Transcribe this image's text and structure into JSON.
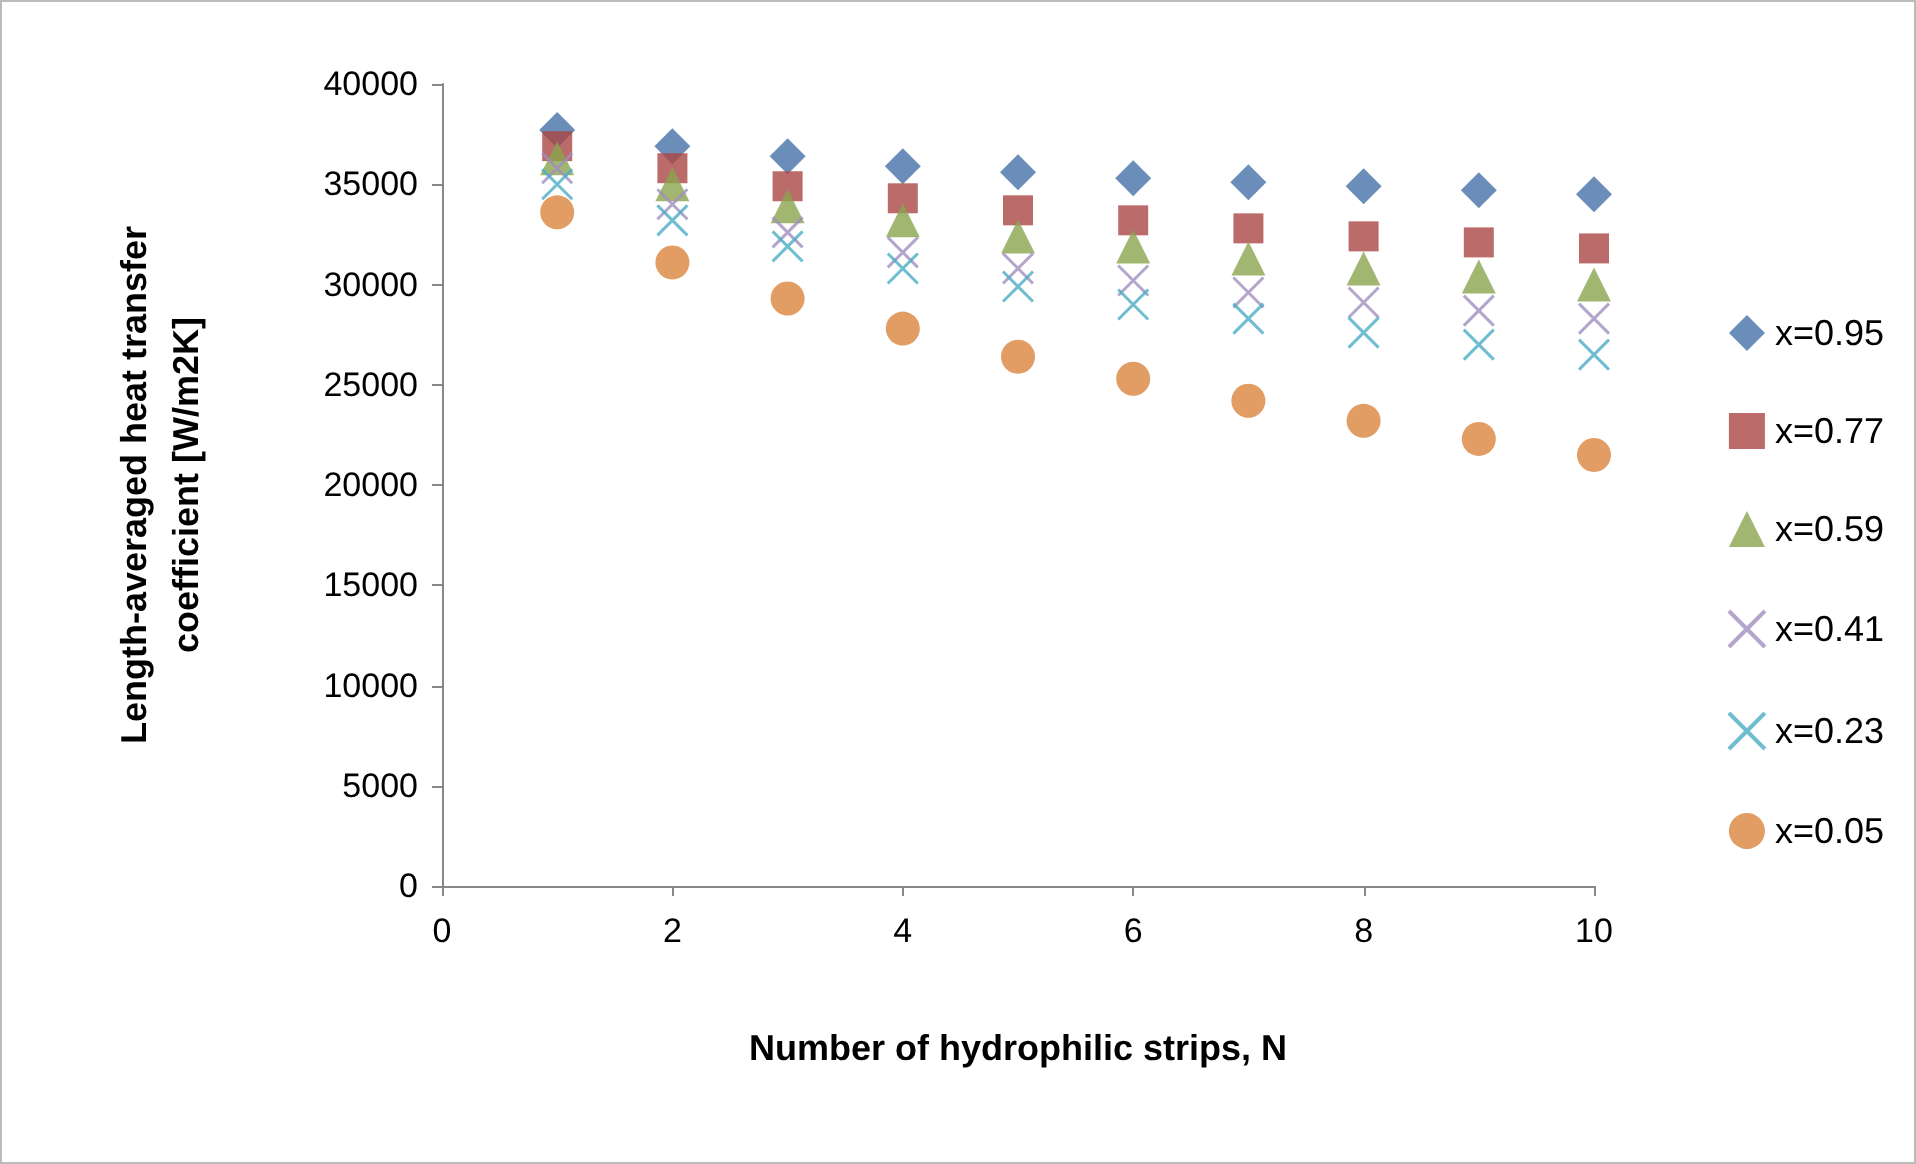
{
  "chart_data": {
    "type": "scatter",
    "xlabel": "Number of hydrophilic strips, N",
    "ylabel": "Length-averaged heat transfer\ncoefficient [W/m2K]",
    "x": [
      1,
      2,
      3,
      4,
      5,
      6,
      7,
      8,
      9,
      10
    ],
    "xlim": [
      0,
      10
    ],
    "xticks": [
      0,
      2,
      4,
      6,
      8,
      10
    ],
    "ylim": [
      0,
      40000
    ],
    "yticks": [
      0,
      5000,
      10000,
      15000,
      20000,
      25000,
      30000,
      35000,
      40000
    ],
    "grid": false,
    "legend": "right",
    "series": [
      {
        "name": "x=0.95",
        "color": "#4572a7",
        "marker": "diamond",
        "values": [
          37700,
          36900,
          36400,
          35900,
          35600,
          35300,
          35100,
          34900,
          34700,
          34500
        ]
      },
      {
        "name": "x=0.77",
        "color": "#aa4643",
        "marker": "square",
        "values": [
          36900,
          35800,
          34900,
          34300,
          33700,
          33200,
          32800,
          32400,
          32100,
          31800
        ]
      },
      {
        "name": "x=0.59",
        "color": "#89a54e",
        "marker": "triangle",
        "values": [
          36300,
          35000,
          33900,
          33200,
          32400,
          31900,
          31300,
          30800,
          30400,
          30000
        ]
      },
      {
        "name": "x=0.41",
        "color": "#a08fbf",
        "marker": "cross",
        "values": [
          35800,
          34000,
          32600,
          31600,
          30800,
          30200,
          29600,
          29100,
          28700,
          28300
        ]
      },
      {
        "name": "x=0.23",
        "color": "#4bacc6",
        "marker": "cross",
        "values": [
          35000,
          33200,
          31900,
          30800,
          29900,
          29000,
          28300,
          27600,
          27000,
          26500
        ]
      },
      {
        "name": "x=0.05",
        "color": "#db843d",
        "marker": "circle",
        "values": [
          33600,
          31100,
          29300,
          27800,
          26400,
          25300,
          24200,
          23200,
          22300,
          21500
        ]
      }
    ]
  }
}
